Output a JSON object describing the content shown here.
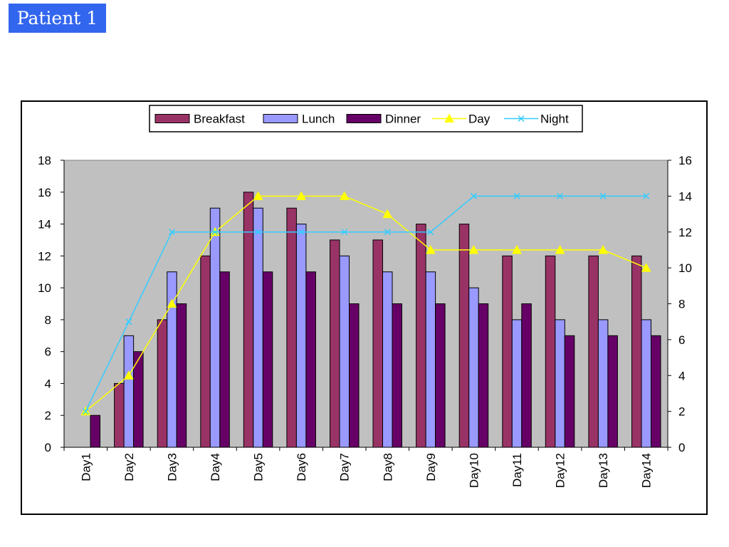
{
  "page_title": "Patient 1",
  "colors": {
    "title_bg": "#3366ee",
    "plot_bg": "#c0c0c0",
    "breakfast": "#993366",
    "lunch": "#9999ff",
    "dinner": "#660066",
    "day": "#ffff00",
    "night": "#33ccff"
  },
  "chart_data": {
    "type": "bar",
    "title": "",
    "xlabel": "",
    "ylabel": "",
    "categories": [
      "Day1",
      "Day2",
      "Day3",
      "Day4",
      "Day5",
      "Day6",
      "Day7",
      "Day8",
      "Day9",
      "Day10",
      "Day11",
      "Day12",
      "Day13",
      "Day14"
    ],
    "series": [
      {
        "name": "Breakfast",
        "type": "bar",
        "axis": "left",
        "values": [
          0,
          4,
          8,
          12,
          16,
          15,
          13,
          13,
          14,
          14,
          12,
          12,
          12,
          12
        ]
      },
      {
        "name": "Lunch",
        "type": "bar",
        "axis": "left",
        "values": [
          0,
          7,
          11,
          15,
          15,
          14,
          12,
          11,
          11,
          10,
          8,
          8,
          8,
          8
        ]
      },
      {
        "name": "Dinner",
        "type": "bar",
        "axis": "left",
        "values": [
          2,
          6,
          9,
          11,
          11,
          11,
          9,
          9,
          9,
          9,
          9,
          7,
          7,
          7
        ]
      },
      {
        "name": "Day",
        "type": "line",
        "marker": "triangle",
        "axis": "right",
        "values": [
          2,
          4,
          8,
          12,
          14,
          14,
          14,
          13,
          11,
          11,
          11,
          11,
          11,
          10
        ]
      },
      {
        "name": "Night",
        "type": "line",
        "marker": "x",
        "axis": "right",
        "values": [
          2,
          7,
          12,
          12,
          12,
          12,
          12,
          12,
          12,
          14,
          14,
          14,
          14,
          14
        ]
      }
    ],
    "ylim_left": [
      0,
      18
    ],
    "yticks_left": [
      0,
      2,
      4,
      6,
      8,
      10,
      12,
      14,
      16,
      18
    ],
    "ylim_right": [
      0,
      16
    ],
    "yticks_right": [
      0,
      2,
      4,
      6,
      8,
      10,
      12,
      14,
      16
    ],
    "grid": false,
    "legend": {
      "position": "top-center",
      "entries": [
        "Breakfast",
        "Lunch",
        "Dinner",
        "Day",
        "Night"
      ]
    }
  }
}
